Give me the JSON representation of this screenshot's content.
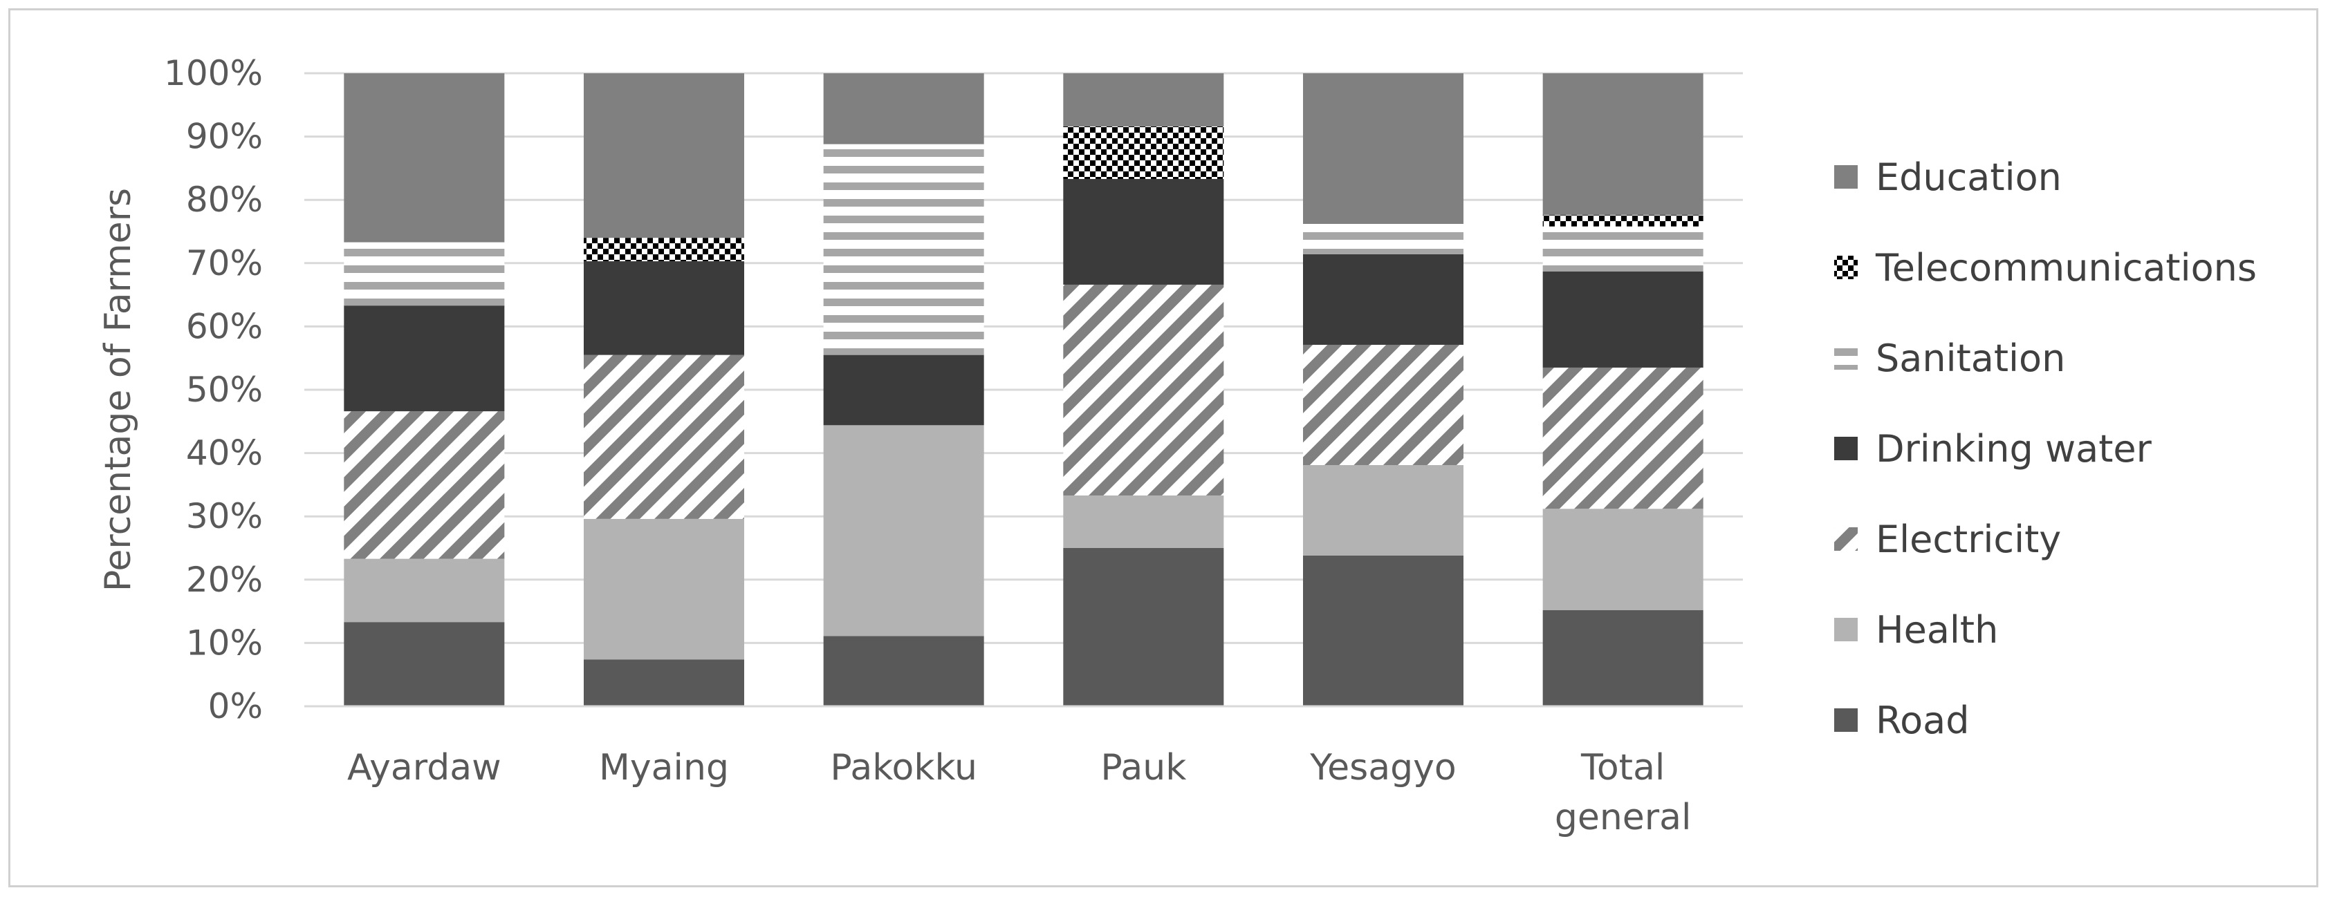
{
  "chart_data": {
    "type": "bar",
    "stacked": true,
    "percent": true,
    "title": "",
    "xlabel": "",
    "ylabel": "Percentage of Farmers",
    "ylim": [
      0,
      100
    ],
    "yticks": [
      "0%",
      "10%",
      "20%",
      "30%",
      "40%",
      "50%",
      "60%",
      "70%",
      "80%",
      "90%",
      "100%"
    ],
    "categories": [
      [
        "Ayardaw"
      ],
      [
        "Myaing"
      ],
      [
        "Pakokku"
      ],
      [
        "Pauk"
      ],
      [
        "Yesagyo"
      ],
      [
        "Total",
        "general"
      ]
    ],
    "grid": true,
    "legend_position": "right",
    "series": [
      {
        "name": "Road",
        "color": "#595959",
        "pattern": "solid",
        "values": [
          13.3,
          7.4,
          11.1,
          25.0,
          23.8,
          15.2
        ]
      },
      {
        "name": "Health",
        "color": "#b3b3b3",
        "pattern": "solid",
        "values": [
          10.0,
          22.2,
          33.3,
          8.3,
          14.3,
          16.0
        ]
      },
      {
        "name": "Electricity",
        "color": "#808080",
        "pattern": "diagonal-stripes",
        "values": [
          23.3,
          25.9,
          0,
          33.3,
          19.0,
          22.3
        ]
      },
      {
        "name": "Drinking water",
        "color": "#3b3b3b",
        "pattern": "solid",
        "values": [
          16.7,
          14.8,
          11.1,
          16.7,
          14.3,
          15.2
        ]
      },
      {
        "name": "Sanitation",
        "color": "#a6a6a6",
        "pattern": "horizontal-stripes",
        "values": [
          10.0,
          0,
          33.3,
          0,
          4.8,
          7.1
        ]
      },
      {
        "name": "Telecommunications",
        "color": "#000000",
        "pattern": "checker",
        "values": [
          0,
          3.7,
          0,
          8.3,
          0,
          1.8
        ]
      },
      {
        "name": "Education",
        "color": "#808080",
        "pattern": "solid",
        "values": [
          26.7,
          26.0,
          11.2,
          8.4,
          23.8,
          22.4
        ]
      }
    ]
  }
}
